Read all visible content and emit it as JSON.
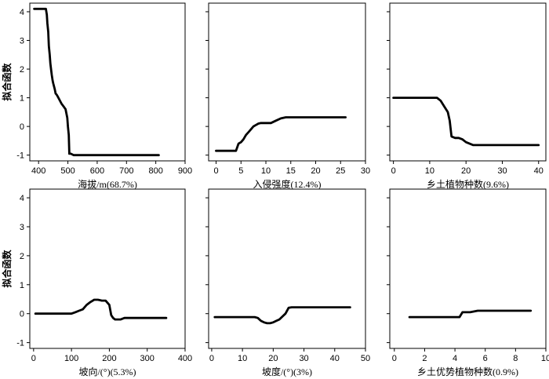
{
  "chart_data": [
    {
      "type": "line",
      "xlabel": "海拔/m(68.7%)",
      "ylabel": "拟合函数",
      "xlim": [
        370,
        900
      ],
      "ylim": [
        -1.2,
        4.3
      ],
      "xticks": [
        400,
        500,
        600,
        700,
        800,
        900
      ],
      "yticks": [
        -1,
        0,
        1,
        2,
        3,
        4
      ],
      "show_y_tick_labels": true,
      "x": [
        385,
        425,
        428,
        430,
        433,
        435,
        438,
        440,
        443,
        445,
        448,
        450,
        455,
        458,
        462,
        465,
        470,
        478,
        485,
        492,
        498,
        500,
        503,
        505,
        510,
        520,
        550,
        600,
        700,
        810
      ],
      "y": [
        4.1,
        4.1,
        3.9,
        3.6,
        3.3,
        2.8,
        2.5,
        2.2,
        1.95,
        1.8,
        1.6,
        1.5,
        1.3,
        1.15,
        1.1,
        1.05,
        0.95,
        0.8,
        0.7,
        0.6,
        0.3,
        0.0,
        -0.3,
        -0.95,
        -0.95,
        -1.0,
        -1.0,
        -1.0,
        -1.0,
        -1.0
      ]
    },
    {
      "type": "line",
      "xlabel": "入侵强度(12.4%)",
      "ylabel": "",
      "xlim": [
        -1.5,
        30
      ],
      "ylim": [
        -1.2,
        4.3
      ],
      "xticks": [
        0,
        5,
        10,
        15,
        20,
        25,
        30
      ],
      "yticks": [
        -1,
        0,
        1,
        2,
        3,
        4
      ],
      "show_y_tick_labels": false,
      "x": [
        0,
        4,
        4.5,
        5,
        5.5,
        6,
        6.5,
        7,
        7.5,
        8,
        8.5,
        9,
        10,
        11,
        12,
        13,
        14,
        16,
        20,
        26
      ],
      "y": [
        -0.85,
        -0.85,
        -0.6,
        -0.55,
        -0.45,
        -0.3,
        -0.2,
        -0.1,
        0.0,
        0.05,
        0.1,
        0.12,
        0.12,
        0.12,
        0.2,
        0.28,
        0.32,
        0.32,
        0.32,
        0.32
      ]
    },
    {
      "type": "line",
      "xlabel": "乡土植物种数(9.6%)",
      "ylabel": "",
      "xlim": [
        -1,
        42
      ],
      "ylim": [
        -1.2,
        4.3
      ],
      "xticks": [
        0,
        10,
        20,
        30,
        40
      ],
      "yticks": [
        -1,
        0,
        1,
        2,
        3,
        4
      ],
      "show_y_tick_labels": false,
      "x": [
        0,
        11,
        12,
        13,
        14,
        15,
        15.5,
        16,
        17,
        18,
        19,
        20,
        21,
        22,
        25,
        30,
        35,
        40
      ],
      "y": [
        1.0,
        1.0,
        1.0,
        0.9,
        0.7,
        0.5,
        0.2,
        -0.35,
        -0.4,
        -0.4,
        -0.45,
        -0.55,
        -0.6,
        -0.65,
        -0.65,
        -0.65,
        -0.65,
        -0.65
      ]
    },
    {
      "type": "line",
      "xlabel": "坡向/(°)(5.3%)",
      "ylabel": "拟合函数",
      "xlim": [
        -10,
        400
      ],
      "ylim": [
        -1.2,
        4.3
      ],
      "xticks": [
        0,
        100,
        200,
        300,
        400
      ],
      "yticks": [
        -1,
        0,
        1,
        2,
        3,
        4
      ],
      "show_y_tick_labels": true,
      "x": [
        5,
        100,
        110,
        120,
        130,
        140,
        150,
        160,
        170,
        180,
        190,
        200,
        205,
        210,
        215,
        220,
        230,
        240,
        250,
        300,
        350
      ],
      "y": [
        0.0,
        0.0,
        0.05,
        0.1,
        0.15,
        0.3,
        0.4,
        0.48,
        0.48,
        0.45,
        0.45,
        0.3,
        -0.05,
        -0.15,
        -0.2,
        -0.2,
        -0.2,
        -0.15,
        -0.15,
        -0.15,
        -0.15
      ]
    },
    {
      "type": "line",
      "xlabel": "坡度/(°)(3%)",
      "ylabel": "",
      "xlim": [
        -1,
        50
      ],
      "ylim": [
        -1.2,
        4.3
      ],
      "xticks": [
        0,
        10,
        20,
        30,
        40,
        50
      ],
      "yticks": [
        -1,
        0,
        1,
        2,
        3,
        4
      ],
      "show_y_tick_labels": false,
      "x": [
        1,
        14,
        15,
        16,
        17,
        18,
        19,
        20,
        21,
        22,
        23,
        24,
        25,
        26,
        30,
        40,
        45
      ],
      "y": [
        -0.12,
        -0.12,
        -0.15,
        -0.25,
        -0.3,
        -0.33,
        -0.33,
        -0.3,
        -0.25,
        -0.2,
        -0.1,
        0.0,
        0.2,
        0.22,
        0.22,
        0.22,
        0.22
      ]
    },
    {
      "type": "line",
      "xlabel": "乡土优势植物种数(0.9%)",
      "ylabel": "",
      "xlim": [
        -0.3,
        10
      ],
      "ylim": [
        -1.2,
        4.3
      ],
      "xticks": [
        0,
        2,
        4,
        6,
        8,
        10
      ],
      "yticks": [
        -1,
        0,
        1,
        2,
        3,
        4
      ],
      "show_y_tick_labels": false,
      "x": [
        1,
        4,
        4.3,
        4.5,
        5,
        5.5,
        6,
        7,
        8,
        9
      ],
      "y": [
        -0.12,
        -0.12,
        -0.12,
        0.05,
        0.05,
        0.1,
        0.1,
        0.1,
        0.1,
        0.1
      ]
    }
  ],
  "style": {
    "line_color": "#000000",
    "axis_color": "#000000",
    "background": "#ffffff"
  }
}
